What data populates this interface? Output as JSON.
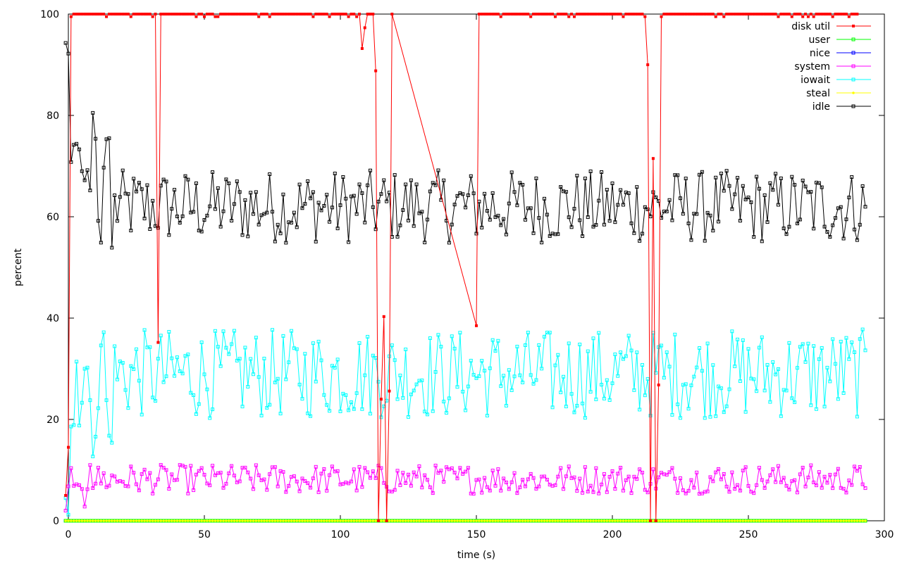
{
  "chart_data": {
    "type": "line",
    "title": "",
    "xlabel": "time (s)",
    "ylabel": "percent",
    "xlim": [
      0,
      300
    ],
    "ylim": [
      0,
      100
    ],
    "x_ticks": [
      0,
      50,
      100,
      150,
      200,
      250,
      300
    ],
    "y_ticks": [
      0,
      20,
      40,
      60,
      80,
      100
    ],
    "grid": false,
    "legend_position": "top-right",
    "series": [
      {
        "name": "disk util",
        "color": "#ff0000",
        "marker": "filled-square",
        "x": [
          -1,
          0,
          1,
          2,
          10,
          32,
          33,
          34,
          60,
          90,
          100,
          107,
          108,
          109,
          110,
          112,
          113,
          114,
          115,
          116,
          117,
          118,
          119,
          150,
          151,
          152,
          200,
          212,
          213,
          214,
          215,
          216,
          217,
          218,
          219,
          250,
          290
        ],
        "y": [
          5,
          14.5,
          99.5,
          100,
          100,
          100,
          35.2,
          100,
          100,
          99.5,
          100,
          100,
          93.2,
          97.3,
          100,
          100,
          88.8,
          0,
          24,
          40.3,
          0,
          25.6,
          100,
          38.5,
          100,
          100,
          100,
          99.5,
          90,
          0,
          71.5,
          0,
          26.8,
          99.5,
          100,
          100,
          100
        ]
      },
      {
        "name": "user",
        "color": "#00ff00",
        "marker": "hollow-square",
        "constant": 0
      },
      {
        "name": "nice",
        "color": "#0000ff",
        "marker": "hollow-square",
        "constant": 0
      },
      {
        "name": "system",
        "color": "#ff00ff",
        "marker": "hollow-square",
        "base": 8.2,
        "amplitude": 1.8,
        "start": [
          [
            -1,
            2
          ],
          [
            0,
            6.8
          ],
          [
            1,
            10.4
          ],
          [
            2,
            6.9
          ],
          [
            3,
            7.2
          ],
          [
            6,
            2.8
          ],
          [
            8,
            11
          ]
        ]
      },
      {
        "name": "iowait",
        "color": "#00ffff",
        "marker": "hollow-square",
        "base": 29,
        "amplitude": 5.5,
        "start": [
          [
            -1,
            4.5
          ],
          [
            0,
            1.2
          ],
          [
            1,
            18.6
          ],
          [
            2,
            18.9
          ],
          [
            4,
            18.8
          ],
          [
            5,
            23.3
          ],
          [
            6,
            30
          ],
          [
            8,
            23.8
          ],
          [
            9,
            12.7
          ],
          [
            10,
            16.6
          ],
          [
            12,
            34.6
          ],
          [
            13,
            37.2
          ],
          [
            14,
            23.8
          ],
          [
            15,
            16.8
          ],
          [
            16,
            15.4
          ]
        ]
      },
      {
        "name": "steal",
        "color": "#ffff00",
        "marker": "filled-circle",
        "constant": 0
      },
      {
        "name": "idle",
        "color": "#000000",
        "marker": "hollow-square",
        "base": 62,
        "amplitude": 4.5,
        "start": [
          [
            -1,
            94.3
          ],
          [
            0,
            92.2
          ],
          [
            1,
            70.8
          ],
          [
            2,
            74.2
          ],
          [
            3,
            74.4
          ],
          [
            4,
            73.3
          ],
          [
            5,
            69
          ],
          [
            6,
            67.2
          ],
          [
            7,
            69.2
          ],
          [
            8,
            65.2
          ],
          [
            9,
            80.5
          ],
          [
            10,
            75.4
          ],
          [
            11,
            59.2
          ],
          [
            12,
            54.9
          ],
          [
            13,
            69.7
          ],
          [
            14,
            75.3
          ],
          [
            15,
            75.5
          ],
          [
            16,
            53.9
          ]
        ]
      }
    ],
    "x_range": [
      -1,
      293
    ]
  }
}
